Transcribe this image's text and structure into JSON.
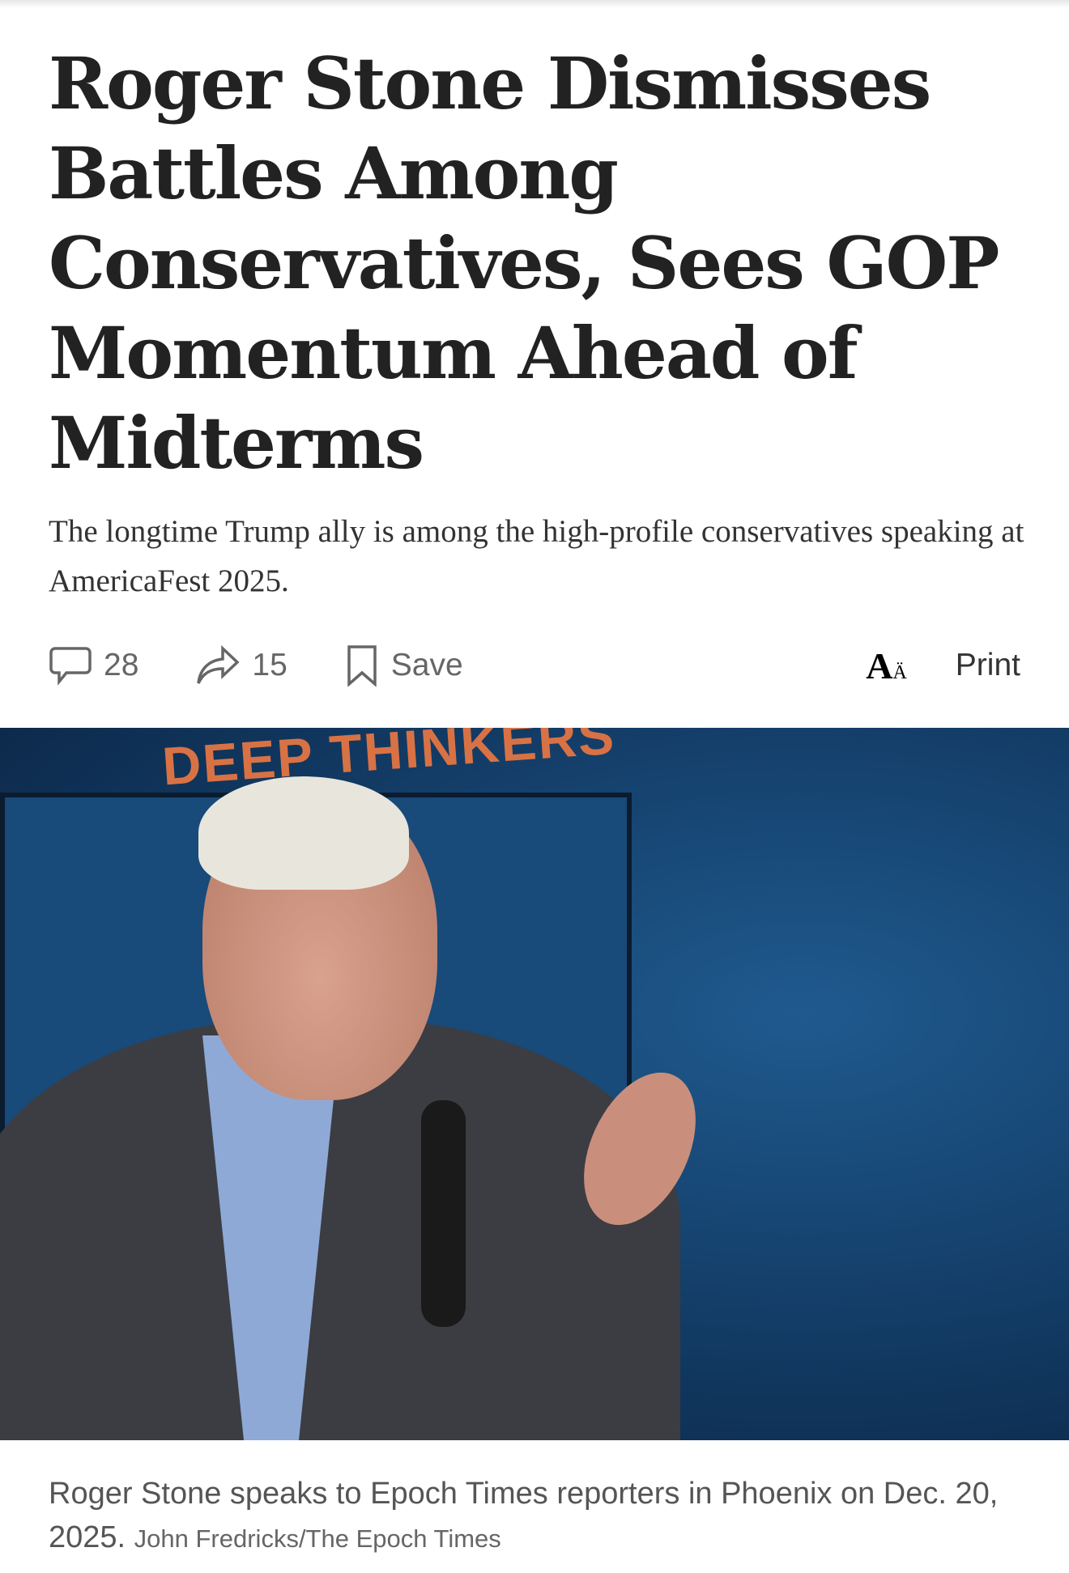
{
  "article": {
    "title": "Roger Stone Dismisses Battles Among Conservatives, Sees GOP Momentum Ahead of Midterms",
    "subtitle": "The longtime Trump ally is among the high-profile conservatives speaking at AmericaFest 2025."
  },
  "actions": {
    "comments_count": "28",
    "shares_count": "15",
    "save_label": "Save",
    "font_size_icon": "A",
    "print_label": "Print"
  },
  "photo": {
    "backdrop_text": "DEEP THINKERS"
  },
  "caption": {
    "text": "Roger Stone speaks to Epoch Times reporters in Phoenix on Dec. 20, 2025.",
    "credit": "John Fredricks/The Epoch Times"
  }
}
